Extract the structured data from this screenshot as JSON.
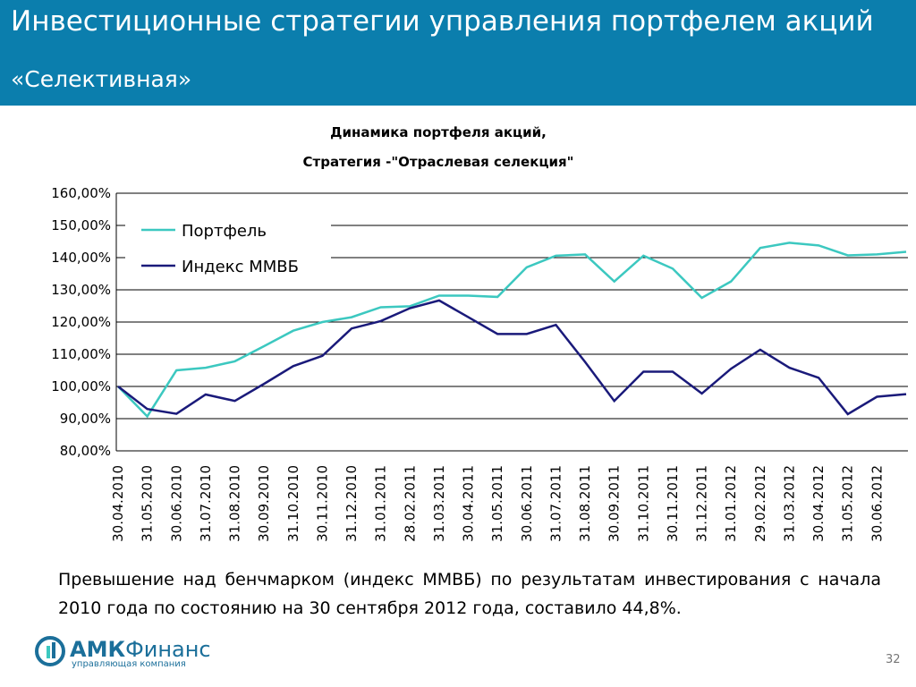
{
  "header": {
    "title": "Инвестиционные стратегии управления портфелем акций",
    "subtitle": "«Селективная»"
  },
  "chart_data": {
    "type": "line",
    "title": "Динамика портфеля акций,",
    "subtitle": "Стратегия -\"Отраслевая селекция\"",
    "categories": [
      "30.04.2010",
      "31.05.2010",
      "30.06.2010",
      "31.07.2010",
      "31.08.2010",
      "30.09.2010",
      "31.10.2010",
      "30.11.2010",
      "31.12.2010",
      "31.01.2011",
      "28.02.2011",
      "31.03.2011",
      "30.04.2011",
      "31.05.2011",
      "30.06.2011",
      "31.07.2011",
      "31.08.2011",
      "30.09.2011",
      "31.10.2011",
      "30.11.2011",
      "31.12.2011",
      "31.01.2012",
      "29.02.2012",
      "31.03.2012",
      "30.04.2012",
      "31.05.2012",
      "30.06.2012",
      null
    ],
    "series": [
      {
        "name": "Портфель",
        "color": "#3cc8c0",
        "values": [
          100,
          90.7,
          105,
          105.8,
          107.8,
          112.5,
          117.3,
          120,
          121.5,
          124.6,
          124.9,
          128.2,
          128.2,
          127.8,
          137,
          140.6,
          141,
          132.6,
          140.6,
          136.6,
          127.5,
          132.6,
          143,
          144.6,
          143.8,
          140.7,
          141,
          141.8
        ]
      },
      {
        "name": "Индекс ММВБ",
        "color": "#1a1a7a",
        "values": [
          100,
          93,
          91.5,
          97.5,
          95.5,
          100.8,
          106.3,
          109.5,
          118,
          120.3,
          124.3,
          126.7,
          121.5,
          116.3,
          116.3,
          119.1,
          107.6,
          95.5,
          104.6,
          104.6,
          97.8,
          105.5,
          111.4,
          105.8,
          102.7,
          91.4,
          96.8,
          97.6
        ]
      }
    ],
    "ylim": [
      80,
      160
    ],
    "yticks": [
      {
        "value": 80,
        "label": "80,00%"
      },
      {
        "value": 90,
        "label": "90,00%"
      },
      {
        "value": 100,
        "label": "100,00%"
      },
      {
        "value": 110,
        "label": "110,00%"
      },
      {
        "value": 120,
        "label": "120,00%"
      },
      {
        "value": 130,
        "label": "130,00%"
      },
      {
        "value": 140,
        "label": "140,00%"
      },
      {
        "value": 150,
        "label": "150,00%"
      },
      {
        "value": 160,
        "label": "160,00%"
      }
    ],
    "grid": true,
    "legend": "upper left"
  },
  "note": "Превышение над бенчмарком (индекс ММВБ) по результатам инвестирования с начала 2010 года по состоянию на 30 сентября 2012 года, составило 44,8%.",
  "footer": {
    "logo_a": "АМК",
    "logo_b": "Финанс",
    "logo_sub": "управляющая компания",
    "page": "32"
  }
}
